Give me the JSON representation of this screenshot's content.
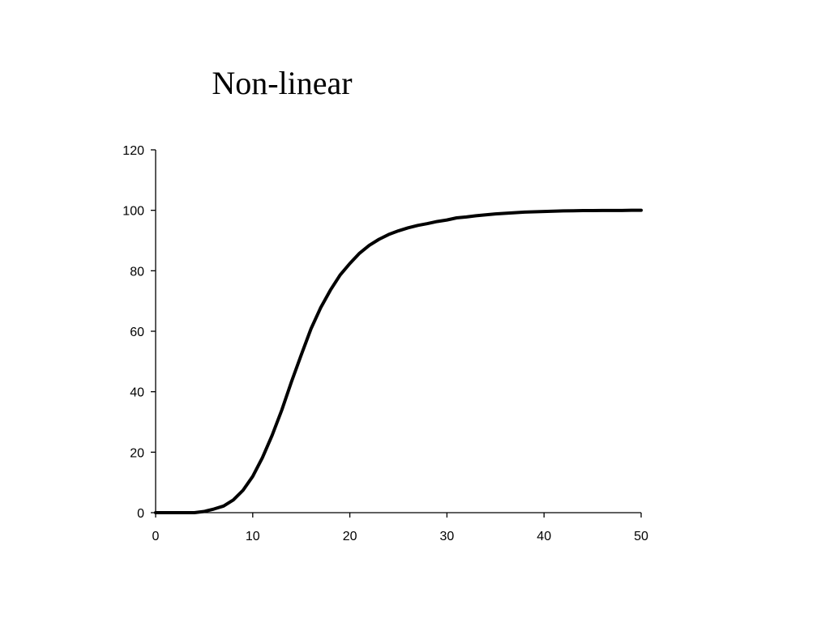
{
  "chart_data": {
    "type": "line",
    "title": "Non-linear",
    "xlabel": "",
    "ylabel": "",
    "xlim": [
      0,
      50
    ],
    "ylim": [
      0,
      120
    ],
    "xticks": [
      0,
      10,
      20,
      30,
      40,
      50
    ],
    "yticks": [
      0,
      20,
      40,
      60,
      80,
      100,
      120
    ],
    "grid": false,
    "legend": "none",
    "series": [
      {
        "color": "#000000",
        "x": [
          0,
          1,
          2,
          3,
          4,
          5,
          6,
          7,
          8,
          9,
          10,
          11,
          12,
          13,
          14,
          15,
          16,
          17,
          18,
          19,
          20,
          21,
          22,
          23,
          24,
          25,
          26,
          27,
          28,
          29,
          30,
          31,
          32,
          33,
          34,
          35,
          36,
          37,
          38,
          39,
          40,
          41,
          42,
          43,
          44,
          45,
          46,
          47,
          48,
          49,
          50
        ],
        "y": [
          0,
          0,
          0,
          0,
          0,
          0.4,
          1.2,
          2.2,
          4.2,
          7.4,
          12,
          18.2,
          25.6,
          34,
          43.4,
          52.2,
          60.8,
          67.8,
          73.6,
          78.6,
          82.4,
          85.8,
          88.4,
          90.4,
          92,
          93.2,
          94.2,
          95,
          95.6,
          96.3,
          96.8,
          97.5,
          97.8,
          98.2,
          98.5,
          98.8,
          99,
          99.2,
          99.4,
          99.5,
          99.6,
          99.7,
          99.8,
          99.85,
          99.9,
          99.9,
          99.95,
          99.95,
          99.95,
          100,
          100
        ]
      }
    ]
  }
}
